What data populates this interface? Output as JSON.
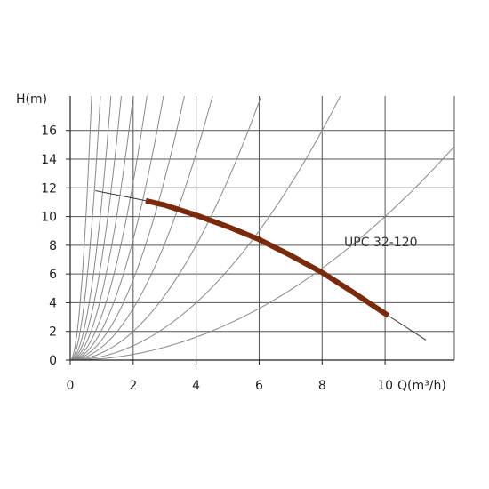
{
  "chart_data": {
    "type": "line",
    "title": "",
    "xlabel": "Q(m³/h)",
    "ylabel": "H(m)",
    "xlim": [
      0,
      12.2
    ],
    "ylim": [
      0,
      18.4
    ],
    "x_ticks": [
      "0",
      "2",
      "4",
      "6",
      "8",
      "10"
    ],
    "y_ticks": [
      "0",
      "2",
      "4",
      "6",
      "8",
      "10",
      "12",
      "14",
      "16"
    ],
    "grid": true,
    "series": [
      {
        "name": "UPC 32-120",
        "x": [
          2.4,
          3.0,
          4.0,
          5.0,
          6.0,
          7.0,
          8.0,
          9.0,
          10.1
        ],
        "y": [
          11.1,
          10.8,
          10.1,
          9.3,
          8.4,
          7.3,
          6.1,
          4.7,
          3.1
        ],
        "extension_x": [
          0.8,
          2.4,
          10.1,
          11.3
        ],
        "extension_y": [
          11.8,
          11.1,
          3.1,
          1.4
        ],
        "color": "#7a2a0a"
      }
    ],
    "system_curves": {
      "k_values": [
        40,
        20,
        11,
        7,
        4.6,
        3.1,
        2.1,
        1.4,
        0.9,
        0.5,
        0.25,
        0.1
      ],
      "color": "#888888"
    }
  }
}
